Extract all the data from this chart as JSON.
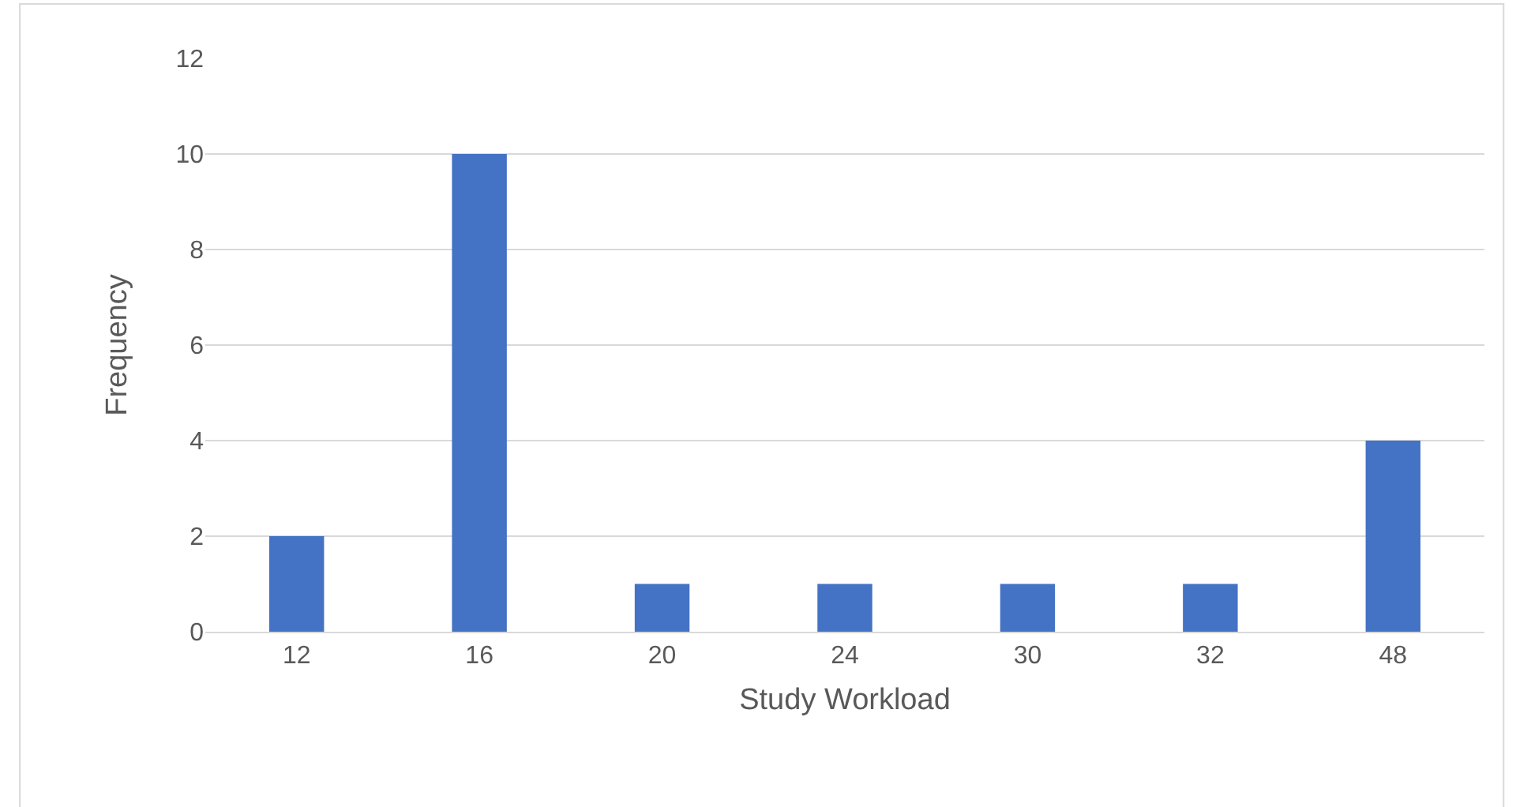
{
  "chart_data": {
    "type": "bar",
    "xlabel": "Study Workload",
    "ylabel": "Frequency",
    "categories": [
      "12",
      "16",
      "20",
      "24",
      "30",
      "32",
      "48"
    ],
    "values": [
      2,
      10,
      1,
      1,
      1,
      1,
      4
    ],
    "color": "#4472c4",
    "ylim": [
      0,
      12
    ],
    "yticks": [
      0,
      2,
      4,
      6,
      8,
      10,
      12
    ],
    "grid": "y",
    "legend": false
  }
}
